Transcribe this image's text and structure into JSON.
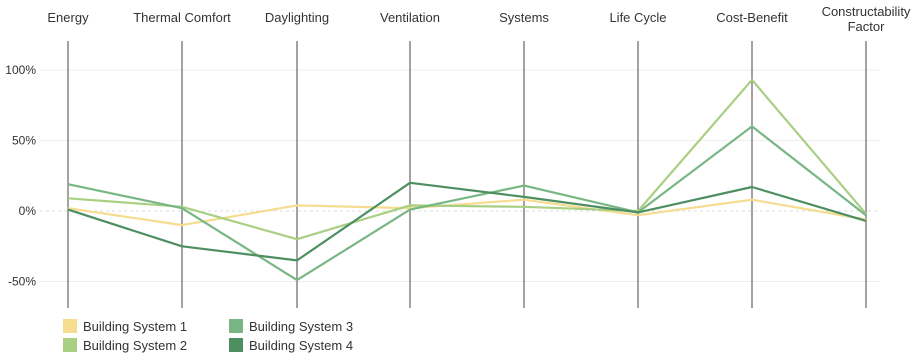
{
  "chart_data": {
    "type": "parallel-coordinates",
    "axes": [
      "Energy",
      "Thermal Comfort",
      "Daylighting",
      "Ventilation",
      "Systems",
      "Life Cycle",
      "Cost-Benefit",
      "Constructability Factor"
    ],
    "axis_title_lines": [
      [
        "Energy"
      ],
      [
        "Thermal Comfort"
      ],
      [
        "Daylighting"
      ],
      [
        "Ventilation"
      ],
      [
        "Systems"
      ],
      [
        "Life Cycle"
      ],
      [
        "Cost-Benefit"
      ],
      [
        "Constructability",
        "Factor"
      ]
    ],
    "y_ticks": [
      {
        "value": 100,
        "label": "100%"
      },
      {
        "value": 50,
        "label": "50%"
      },
      {
        "value": 0,
        "label": "0%"
      },
      {
        "value": -50,
        "label": "-50%"
      }
    ],
    "ylim": [
      -70,
      110
    ],
    "y_unit": "%",
    "series": [
      {
        "name": "Building System 1",
        "color": "#f5dc8f",
        "values": [
          2,
          -10,
          4,
          2,
          8,
          -3,
          8,
          -6
        ]
      },
      {
        "name": "Building System 2",
        "color": "#a9cf83",
        "values": [
          9,
          3,
          -20,
          4,
          3,
          0,
          93,
          -2
        ]
      },
      {
        "name": "Building System 3",
        "color": "#78b784",
        "values": [
          19,
          2,
          -49,
          1,
          18,
          -1,
          60,
          -3
        ]
      },
      {
        "name": "Building System 4",
        "color": "#4e8f62",
        "values": [
          1,
          -25,
          -35,
          20,
          10,
          -1,
          17,
          -7
        ]
      }
    ],
    "grid": true,
    "legend_position": "bottom-left"
  }
}
